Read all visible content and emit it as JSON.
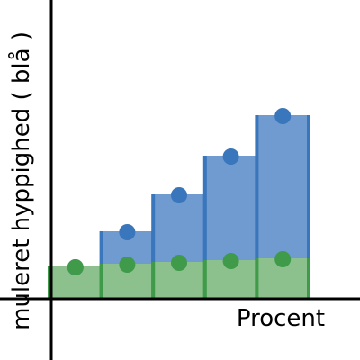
{
  "chart_data": {
    "type": "bar",
    "x_label": "Procent",
    "y_label": "muleret hyppighed ( blå )",
    "categories": [
      null,
      null,
      null,
      null,
      null
    ],
    "series": [
      {
        "color": "#6f9bd1",
        "edge": "#3a76bb",
        "values": [
          36,
          75,
          116,
          159,
          204
        ]
      },
      {
        "color": "#8cc08c",
        "edge": "#3f9a4a",
        "values": [
          36,
          39,
          41,
          43,
          45
        ]
      }
    ],
    "ylim": [
      0,
      332
    ]
  }
}
